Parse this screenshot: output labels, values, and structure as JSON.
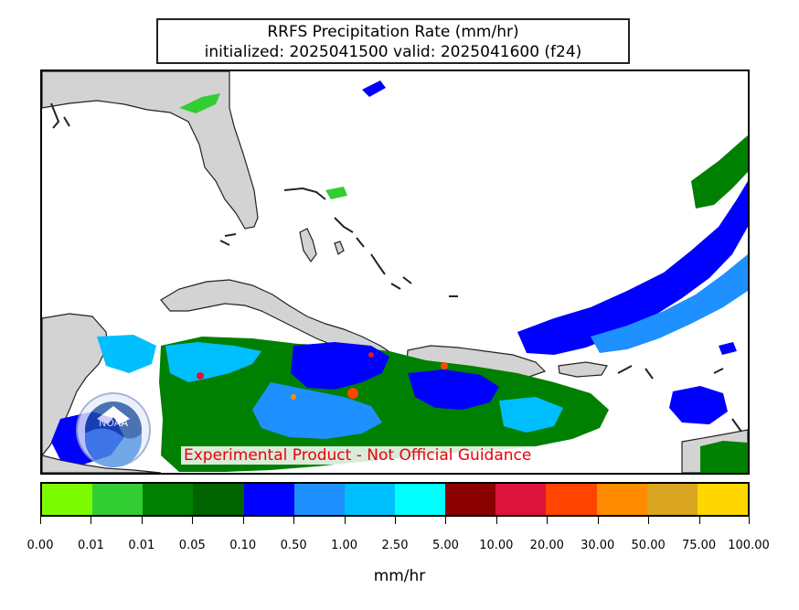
{
  "header": {
    "title_line1": "RRFS Precipitation Rate (mm/hr)",
    "title_line2": "initialized: 2025041500 valid: 2025041600 (f24)"
  },
  "map": {
    "disclaimer": "Experimental Product - Not Official Guidance",
    "land_color": "#d3d3d3",
    "coast_color": "#222222",
    "logo": {
      "icon": "noaa-logo-icon",
      "text": "NOAA"
    }
  },
  "colorbar": {
    "label": "mm/hr",
    "colors": [
      "#7cfc00",
      "#32cd32",
      "#008000",
      "#006400",
      "#0000ff",
      "#1e90ff",
      "#00bfff",
      "#00ffff",
      "#8b0000",
      "#dc143c",
      "#ff4500",
      "#ff8c00",
      "#daa520",
      "#ffd700"
    ],
    "tick_labels": [
      "0.00",
      "0.01",
      "0.01",
      "0.05",
      "0.10",
      "0.50",
      "1.00",
      "2.50",
      "5.00",
      "10.00",
      "20.00",
      "30.00",
      "50.00",
      "75.00",
      "100.00"
    ]
  }
}
